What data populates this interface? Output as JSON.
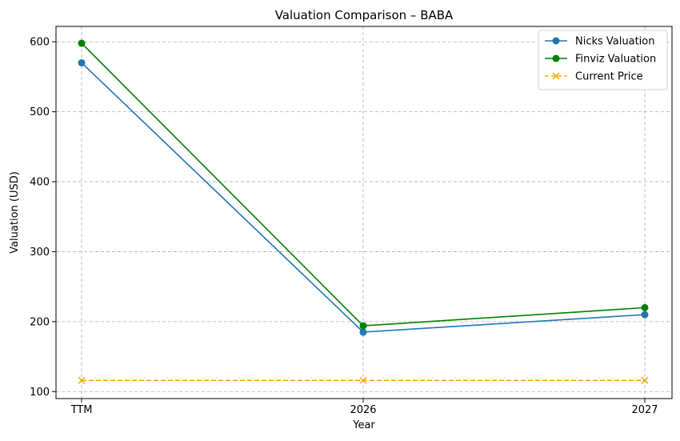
{
  "chart_data": {
    "type": "line",
    "title": "Valuation Comparison – BABA",
    "xlabel": "Year",
    "ylabel": "Valuation (USD)",
    "categories": [
      "TTM",
      "2026",
      "2027"
    ],
    "ylim": [
      90,
      622
    ],
    "yticks": [
      100,
      200,
      300,
      400,
      500,
      600
    ],
    "grid": true,
    "legend_position": "top-right",
    "series": [
      {
        "name": "Nicks Valuation",
        "values": [
          570,
          185,
          210
        ],
        "color": "#1f77b4",
        "marker": "circle",
        "linestyle": "solid"
      },
      {
        "name": "Finviz Valuation",
        "values": [
          598,
          194,
          220
        ],
        "color": "#008000",
        "marker": "circle",
        "linestyle": "solid"
      },
      {
        "name": "Current Price",
        "values": [
          116,
          116,
          116
        ],
        "color": "#ffa500",
        "marker": "x",
        "linestyle": "dashed"
      }
    ]
  }
}
